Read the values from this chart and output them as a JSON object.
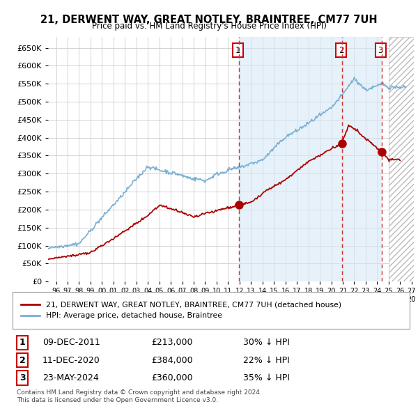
{
  "title": "21, DERWENT WAY, GREAT NOTLEY, BRAINTREE, CM77 7UH",
  "subtitle": "Price paid vs. HM Land Registry's House Price Index (HPI)",
  "ylabel_ticks": [
    "£0",
    "£50K",
    "£100K",
    "£150K",
    "£200K",
    "£250K",
    "£300K",
    "£350K",
    "£400K",
    "£450K",
    "£500K",
    "£550K",
    "£600K",
    "£650K"
  ],
  "ylim": [
    0,
    680000
  ],
  "yticks": [
    0,
    50000,
    100000,
    150000,
    200000,
    250000,
    300000,
    350000,
    400000,
    450000,
    500000,
    550000,
    600000,
    650000
  ],
  "xmin": 1995.3,
  "xmax": 2027.2,
  "sale_color": "#aa0000",
  "hpi_color": "#7aafd4",
  "hpi_fill_color": "#d6e8f5",
  "vline_color": "#cc3333",
  "grid_color": "#cccccc",
  "bg_color": "#ffffff",
  "sale_points": [
    {
      "year": 2011.92,
      "value": 213000,
      "label": "1"
    },
    {
      "year": 2020.92,
      "value": 384000,
      "label": "2"
    },
    {
      "year": 2024.38,
      "value": 360000,
      "label": "3"
    }
  ],
  "shaded_region_start": 2011.92,
  "shaded_region_end": 2024.38,
  "hatch_start": 2025.0,
  "hatch_end": 2027.5,
  "legend_sale_label": "21, DERWENT WAY, GREAT NOTLEY, BRAINTREE, CM77 7UH (detached house)",
  "legend_hpi_label": "HPI: Average price, detached house, Braintree",
  "table_rows": [
    {
      "num": "1",
      "date": "09-DEC-2011",
      "price": "£213,000",
      "pct": "30% ↓ HPI"
    },
    {
      "num": "2",
      "date": "11-DEC-2020",
      "price": "£384,000",
      "pct": "22% ↓ HPI"
    },
    {
      "num": "3",
      "date": "23-MAY-2024",
      "price": "£360,000",
      "pct": "35% ↓ HPI"
    }
  ],
  "footer": "Contains HM Land Registry data © Crown copyright and database right 2024.\nThis data is licensed under the Open Government Licence v3.0."
}
